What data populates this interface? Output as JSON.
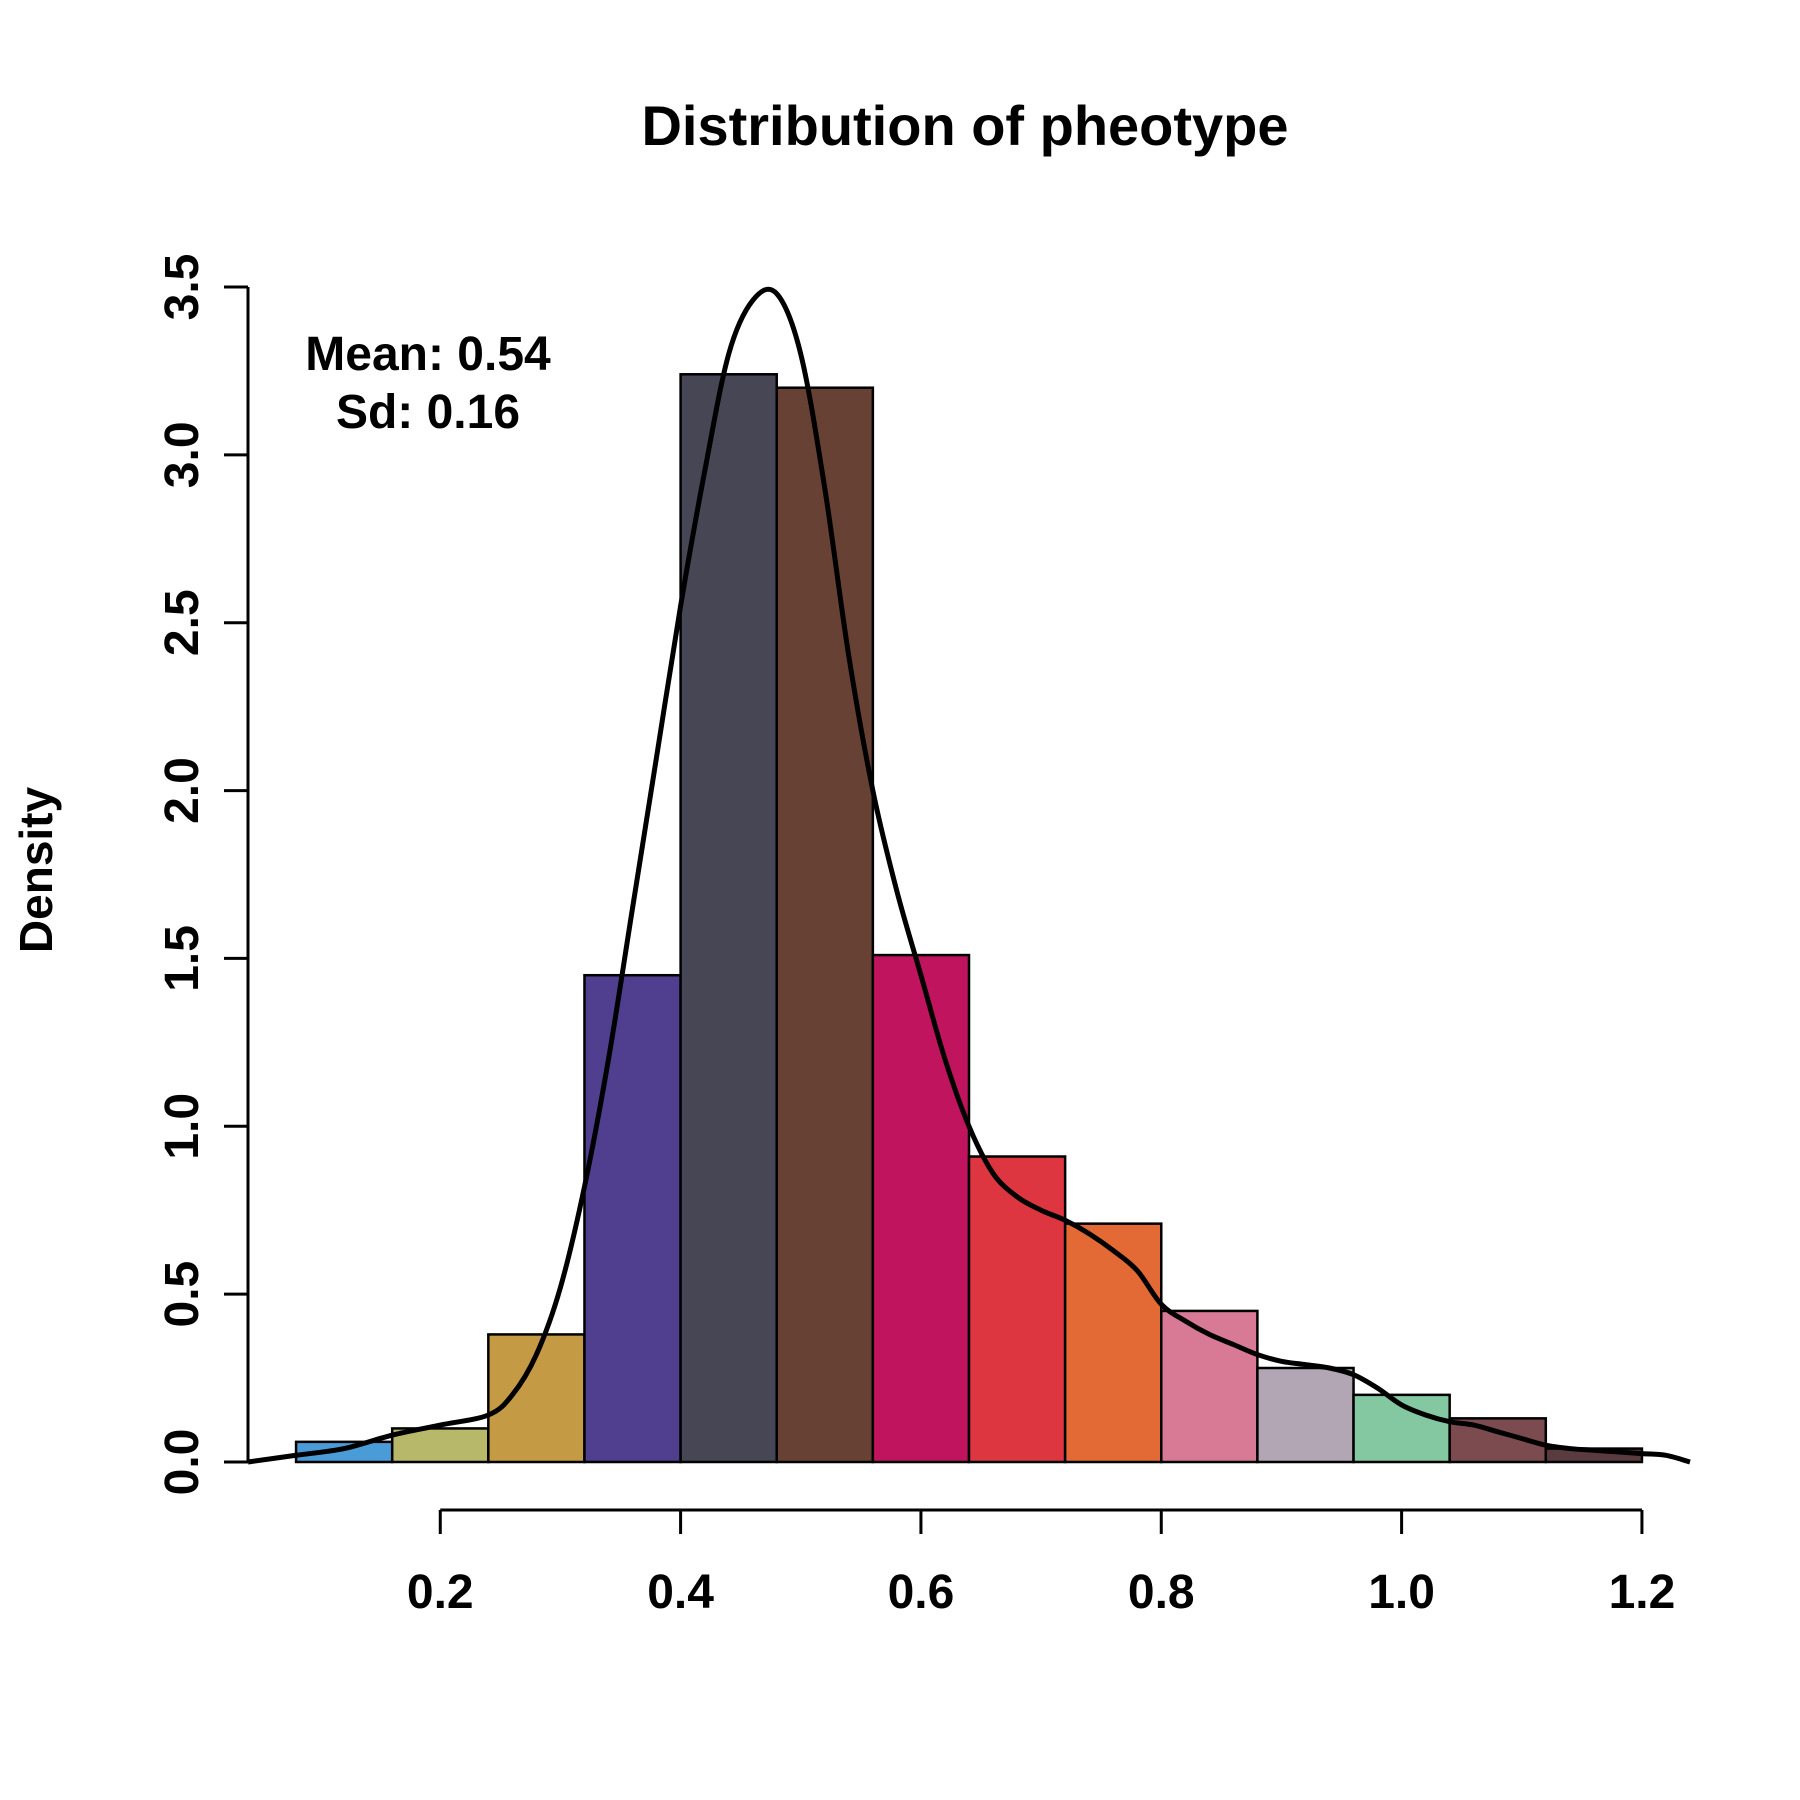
{
  "chart_data": {
    "type": "bar",
    "title": "Distribution of pheotype",
    "xlabel": "",
    "ylabel": "Density",
    "xlim": [
      0.04,
      1.24
    ],
    "ylim": [
      0,
      3.5
    ],
    "x_ticks": [
      "0.2",
      "0.4",
      "0.6",
      "0.8",
      "1.0",
      "1.2"
    ],
    "x_tick_values": [
      0.2,
      0.4,
      0.6,
      0.8,
      1.0,
      1.2
    ],
    "y_ticks": [
      "0.0",
      "0.5",
      "1.0",
      "1.5",
      "2.0",
      "2.5",
      "3.0",
      "3.5"
    ],
    "y_tick_values": [
      0,
      0.5,
      1.0,
      1.5,
      2.0,
      2.5,
      3.0,
      3.5
    ],
    "bins": [
      {
        "start": 0.08,
        "end": 0.16,
        "density": 0.06,
        "color": "#4a9cd9"
      },
      {
        "start": 0.16,
        "end": 0.24,
        "density": 0.1,
        "color": "#b8b86a"
      },
      {
        "start": 0.24,
        "end": 0.32,
        "density": 0.38,
        "color": "#c49a45"
      },
      {
        "start": 0.32,
        "end": 0.4,
        "density": 1.45,
        "color": "#4f3f8e"
      },
      {
        "start": 0.4,
        "end": 0.48,
        "density": 3.24,
        "color": "#464655"
      },
      {
        "start": 0.48,
        "end": 0.56,
        "density": 3.2,
        "color": "#674234"
      },
      {
        "start": 0.56,
        "end": 0.64,
        "density": 1.51,
        "color": "#c0155e"
      },
      {
        "start": 0.64,
        "end": 0.72,
        "density": 0.91,
        "color": "#dd3641"
      },
      {
        "start": 0.72,
        "end": 0.8,
        "density": 0.71,
        "color": "#e36a35"
      },
      {
        "start": 0.8,
        "end": 0.88,
        "density": 0.45,
        "color": "#d87a96"
      },
      {
        "start": 0.88,
        "end": 0.96,
        "density": 0.28,
        "color": "#b2a6b4"
      },
      {
        "start": 0.96,
        "end": 1.04,
        "density": 0.2,
        "color": "#83c8a1"
      },
      {
        "start": 1.04,
        "end": 1.12,
        "density": 0.13,
        "color": "#7c4b50"
      },
      {
        "start": 1.12,
        "end": 1.2,
        "density": 0.04,
        "color": "#5a3c40"
      }
    ],
    "density_curve": {
      "x": [
        0.04,
        0.08,
        0.12,
        0.16,
        0.2,
        0.24,
        0.26,
        0.28,
        0.3,
        0.32,
        0.34,
        0.36,
        0.38,
        0.4,
        0.42,
        0.44,
        0.46,
        0.48,
        0.5,
        0.52,
        0.54,
        0.56,
        0.58,
        0.6,
        0.62,
        0.64,
        0.66,
        0.68,
        0.7,
        0.72,
        0.74,
        0.76,
        0.78,
        0.8,
        0.82,
        0.84,
        0.86,
        0.88,
        0.9,
        0.92,
        0.94,
        0.96,
        0.98,
        1.0,
        1.02,
        1.04,
        1.06,
        1.08,
        1.1,
        1.12,
        1.14,
        1.16,
        1.18,
        1.2,
        1.22,
        1.24
      ],
      "y": [
        0.0,
        0.02,
        0.04,
        0.08,
        0.11,
        0.14,
        0.2,
        0.32,
        0.52,
        0.82,
        1.2,
        1.65,
        2.1,
        2.55,
        2.95,
        3.3,
        3.46,
        3.48,
        3.3,
        2.9,
        2.4,
        2.0,
        1.7,
        1.45,
        1.2,
        1.0,
        0.86,
        0.79,
        0.75,
        0.72,
        0.68,
        0.63,
        0.57,
        0.47,
        0.42,
        0.38,
        0.35,
        0.32,
        0.3,
        0.29,
        0.28,
        0.26,
        0.22,
        0.17,
        0.14,
        0.12,
        0.11,
        0.09,
        0.07,
        0.05,
        0.04,
        0.035,
        0.03,
        0.025,
        0.02,
        0.0
      ]
    },
    "annotations": [
      "Mean: 0.54",
      "Sd: 0.16"
    ],
    "grid": false,
    "legend": "none"
  }
}
